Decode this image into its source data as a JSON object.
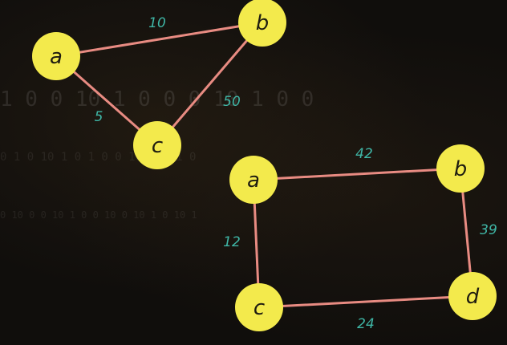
{
  "graph1": {
    "nodes": {
      "a": "a",
      "b": "b",
      "c": "c"
    },
    "weights": {
      "ab": "10",
      "ac": "5",
      "bc": "50"
    }
  },
  "graph2": {
    "nodes": {
      "a": "a",
      "b": "b",
      "c": "c",
      "d": "d"
    },
    "weights": {
      "ab": "42",
      "bd": "39",
      "ac": "12",
      "cd": "24"
    }
  },
  "colors": {
    "node_fill": "#f3ea4c",
    "edge": "#e88b82",
    "weight_text": "#3fb6a6",
    "node_text": "#1e1c10"
  }
}
